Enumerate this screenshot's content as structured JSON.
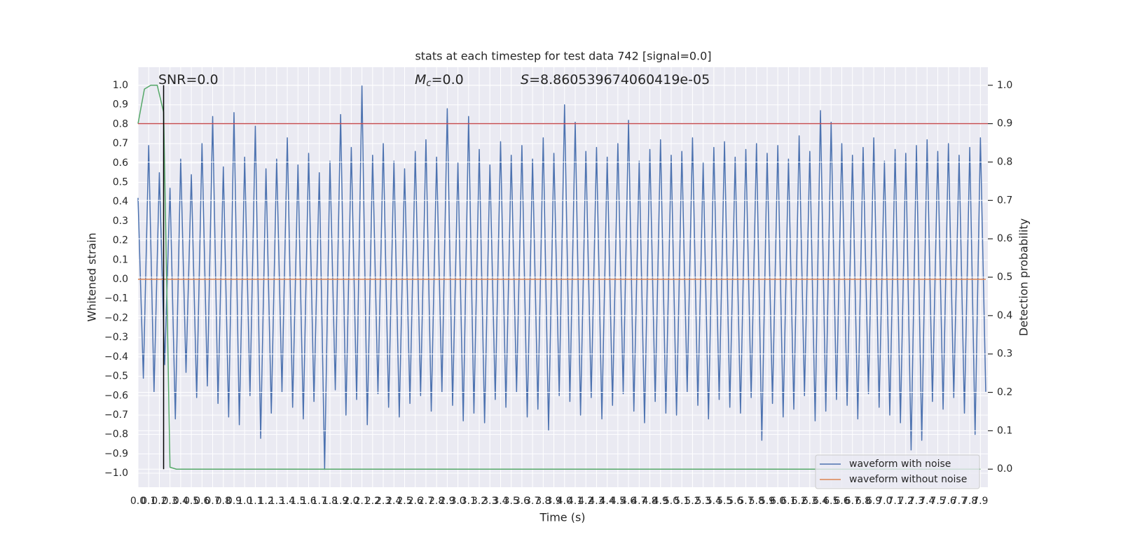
{
  "chart_data": {
    "type": "line",
    "title": "stats at each timestep for test data 742 [signal=0.0]",
    "xlabel": "Time (s)",
    "ylabel": "Whitened strain",
    "y2label": "Detection probability",
    "annotations": [
      {
        "text": "SNR=0.0"
      },
      {
        "symbol": "M",
        "subscript": "c",
        "text": "=0.0"
      },
      {
        "symbol": "S",
        "text": "=8.860539674060419e-05"
      }
    ],
    "xlim": [
      0,
      7.97
    ],
    "ylim": [
      -1.072,
      1.094
    ],
    "y2lim": [
      -0.047,
      1.047
    ],
    "grid": true,
    "legend": "lower right",
    "xticks": [
      {
        "value": 0,
        "label": "0.0"
      },
      0.1,
      0.2,
      0.3,
      0.4,
      0.5,
      0.6,
      0.7,
      0.8,
      0.9,
      {
        "value": 1,
        "label": "1.0"
      },
      1.1,
      1.2,
      1.3,
      1.4,
      1.5,
      1.6,
      1.7,
      1.8,
      1.9,
      {
        "value": 2,
        "label": "2.0"
      },
      2.1,
      2.2,
      2.3,
      2.4,
      2.5,
      2.6,
      2.7,
      2.8,
      2.9,
      {
        "value": 3,
        "label": "3.0"
      },
      3.1,
      3.2,
      3.3,
      3.4,
      3.5,
      3.6,
      3.7,
      3.8,
      3.9,
      {
        "value": 4,
        "label": "4.0"
      },
      4.1,
      4.2,
      4.3,
      4.4,
      4.5,
      4.6,
      4.7,
      4.8,
      4.9,
      {
        "value": 5,
        "label": "5.0"
      },
      5.1,
      5.2,
      5.3,
      5.4,
      5.5,
      5.6,
      5.7,
      5.8,
      5.9,
      {
        "value": 6,
        "label": "6.0"
      },
      6.1,
      6.2,
      6.3,
      6.4,
      6.5,
      6.6,
      6.7,
      6.8,
      6.9,
      {
        "value": 7,
        "label": "7.0"
      },
      7.1,
      7.2,
      7.3,
      7.4,
      7.5,
      7.6,
      7.7,
      7.8,
      7.9
    ],
    "yticks": [
      {
        "value": 1,
        "label": "1.0"
      },
      0.9,
      0.8,
      0.7,
      0.6,
      0.5,
      0.4,
      0.3,
      0.2,
      0.1,
      {
        "value": 0,
        "label": "0.0"
      },
      {
        "value": -0.1,
        "label": "−0.1"
      },
      {
        "value": -0.2,
        "label": "−0.2"
      },
      {
        "value": -0.3,
        "label": "−0.3"
      },
      {
        "value": -0.4,
        "label": "−0.4"
      },
      {
        "value": -0.5,
        "label": "−0.5"
      },
      {
        "value": -0.6,
        "label": "−0.6"
      },
      {
        "value": -0.7,
        "label": "−0.7"
      },
      {
        "value": -0.8,
        "label": "−0.8"
      },
      {
        "value": -0.9,
        "label": "−0.9"
      },
      {
        "value": -1,
        "label": "−1.0"
      }
    ],
    "y2ticks": [
      {
        "value": 0,
        "label": "0.0"
      },
      0.1,
      0.2,
      0.3,
      0.4,
      0.5,
      0.6,
      0.7,
      0.8,
      0.9,
      {
        "value": 1,
        "label": "1.0"
      }
    ],
    "series": [
      {
        "name": "waveform with noise",
        "color": "#4c72b0",
        "x": [
          0,
          0.05,
          0.1,
          0.15,
          0.2,
          0.25,
          0.3,
          0.35,
          0.4,
          0.45,
          0.5,
          0.55,
          0.6,
          0.65,
          0.7,
          0.75,
          0.8,
          0.85,
          0.9,
          0.95,
          1,
          1.05,
          1.1,
          1.15,
          1.2,
          1.25,
          1.3,
          1.35,
          1.4,
          1.45,
          1.5,
          1.55,
          1.6,
          1.65,
          1.7,
          1.75,
          1.8,
          1.85,
          1.9,
          1.95,
          2,
          2.05,
          2.1,
          2.15,
          2.2,
          2.25,
          2.3,
          2.35,
          2.4,
          2.45,
          2.5,
          2.55,
          2.6,
          2.65,
          2.7,
          2.75,
          2.8,
          2.85,
          2.9,
          2.95,
          3,
          3.05,
          3.1,
          3.15,
          3.2,
          3.25,
          3.3,
          3.35,
          3.4,
          3.45,
          3.5,
          3.55,
          3.6,
          3.65,
          3.7,
          3.75,
          3.8,
          3.85,
          3.9,
          3.95,
          4,
          4.05,
          4.1,
          4.15,
          4.2,
          4.25,
          4.3,
          4.35,
          4.4,
          4.45,
          4.5,
          4.55,
          4.6,
          4.65,
          4.7,
          4.75,
          4.8,
          4.85,
          4.9,
          4.95,
          5,
          5.05,
          5.1,
          5.15,
          5.2,
          5.25,
          5.3,
          5.35,
          5.4,
          5.45,
          5.5,
          5.55,
          5.6,
          5.65,
          5.7,
          5.75,
          5.8,
          5.85,
          5.9,
          5.95,
          6,
          6.05,
          6.1,
          6.15,
          6.2,
          6.25,
          6.3,
          6.35,
          6.4,
          6.45,
          6.5,
          6.55,
          6.6,
          6.65,
          6.7,
          6.75,
          6.8,
          6.85,
          6.9,
          6.95,
          7,
          7.05,
          7.1,
          7.15,
          7.2,
          7.25,
          7.3,
          7.35,
          7.4,
          7.45,
          7.5,
          7.55,
          7.6,
          7.65,
          7.7,
          7.75,
          7.8,
          7.85,
          7.9,
          7.95
        ],
        "values": [
          0.42,
          -0.51,
          0.69,
          -0.58,
          0.55,
          -0.44,
          0.47,
          -0.72,
          0.62,
          -0.48,
          0.54,
          -0.61,
          0.7,
          -0.55,
          0.84,
          -0.64,
          0.58,
          -0.71,
          0.86,
          -0.75,
          0.63,
          -0.6,
          0.79,
          -0.82,
          0.57,
          -0.69,
          0.62,
          -0.58,
          0.73,
          -0.66,
          0.59,
          -0.72,
          0.65,
          -0.63,
          0.55,
          -0.98,
          0.61,
          -0.57,
          0.85,
          -0.7,
          0.68,
          -0.62,
          1.0,
          -0.75,
          0.64,
          -0.59,
          0.7,
          -0.66,
          0.61,
          -0.71,
          0.57,
          -0.64,
          0.66,
          -0.6,
          0.72,
          -0.68,
          0.63,
          -0.58,
          0.88,
          -0.65,
          0.6,
          -0.73,
          0.84,
          -0.69,
          0.67,
          -0.74,
          0.59,
          -0.62,
          0.71,
          -0.66,
          0.64,
          -0.58,
          0.69,
          -0.71,
          0.62,
          -0.67,
          0.73,
          -0.78,
          0.65,
          -0.6,
          0.9,
          -0.63,
          0.81,
          -0.7,
          0.66,
          -0.61,
          0.68,
          -0.72,
          0.63,
          -0.65,
          0.7,
          -0.59,
          0.82,
          -0.68,
          0.61,
          -0.74,
          0.67,
          -0.63,
          0.72,
          -0.69,
          0.64,
          -0.7,
          0.66,
          -0.58,
          0.73,
          -0.65,
          0.6,
          -0.72,
          0.68,
          -0.62,
          0.71,
          -0.66,
          0.63,
          -0.69,
          0.67,
          -0.61,
          0.7,
          -0.83,
          0.65,
          -0.64,
          0.69,
          -0.71,
          0.62,
          -0.67,
          0.74,
          -0.6,
          0.66,
          -0.73,
          0.87,
          -0.68,
          0.81,
          -0.62,
          0.7,
          -0.65,
          0.64,
          -0.72,
          0.68,
          -0.59,
          0.73,
          -0.66,
          0.61,
          -0.7,
          0.67,
          -0.74,
          0.65,
          -0.88,
          0.69,
          -0.83,
          0.72,
          -0.63,
          0.66,
          -0.67,
          0.7,
          -0.61,
          0.64,
          -0.69,
          0.68,
          -0.8,
          0.73,
          -0.58
        ]
      },
      {
        "name": "waveform without noise",
        "color": "#dd8452",
        "x": [
          0,
          7.95
        ],
        "values": [
          0,
          0
        ]
      },
      {
        "color": "#55a868",
        "axis": "y2",
        "x": [
          0,
          0.06,
          0.12,
          0.18,
          0.24,
          0.3,
          0.36,
          7.9
        ],
        "values": [
          0.9,
          0.99,
          1.0,
          1.0,
          0.93,
          0.005,
          0.0,
          0.0
        ]
      }
    ],
    "hlines": [
      {
        "value": 0.9,
        "axis": "y2",
        "color": "#c44e52"
      }
    ],
    "vlines": [
      {
        "x": 0.24,
        "ymin": 0,
        "ymax": 1,
        "axis": "y2",
        "color": "#000000"
      }
    ]
  }
}
